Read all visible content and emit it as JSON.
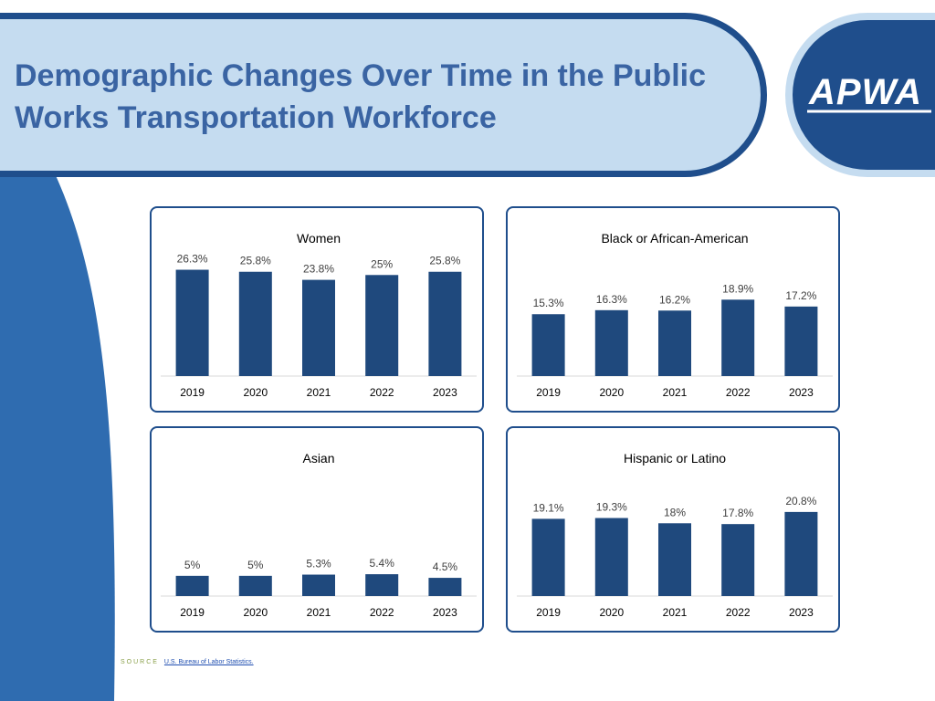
{
  "title": "Demographic Changes Over Time in the Public Works Transportation Workforce",
  "logo": {
    "text": "APWA"
  },
  "source": {
    "label": "SOURCE",
    "link_text": "U.S. Bureau of Labor Statistics."
  },
  "colors": {
    "bar": "#1f497d",
    "accent": "#1f4e8c",
    "banner": "#c5dcf0"
  },
  "chart_data": [
    {
      "type": "bar",
      "title": "Women",
      "categories": [
        "2019",
        "2020",
        "2021",
        "2022",
        "2023"
      ],
      "values": [
        26.3,
        25.8,
        23.8,
        25,
        25.8
      ],
      "value_labels": [
        "26.3%",
        "25.8%",
        "23.8%",
        "25%",
        "25.8%"
      ],
      "ylim": [
        0,
        28
      ]
    },
    {
      "type": "bar",
      "title": "Black or African-American",
      "categories": [
        "2019",
        "2020",
        "2021",
        "2022",
        "2023"
      ],
      "values": [
        15.3,
        16.3,
        16.2,
        18.9,
        17.2
      ],
      "value_labels": [
        "15.3%",
        "16.3%",
        "16.2%",
        "18.9%",
        "17.2%"
      ],
      "ylim": [
        0,
        28
      ]
    },
    {
      "type": "bar",
      "title": "Asian",
      "categories": [
        "2019",
        "2020",
        "2021",
        "2022",
        "2023"
      ],
      "values": [
        5,
        5,
        5.3,
        5.4,
        4.5
      ],
      "value_labels": [
        "5%",
        "5%",
        "5.3%",
        "5.4%",
        "4.5%"
      ],
      "ylim": [
        0,
        28
      ]
    },
    {
      "type": "bar",
      "title": "Hispanic or Latino",
      "categories": [
        "2019",
        "2020",
        "2021",
        "2022",
        "2023"
      ],
      "values": [
        19.1,
        19.3,
        18,
        17.8,
        20.8
      ],
      "value_labels": [
        "19.1%",
        "19.3%",
        "18%",
        "17.8%",
        "20.8%"
      ],
      "ylim": [
        0,
        28
      ]
    }
  ]
}
